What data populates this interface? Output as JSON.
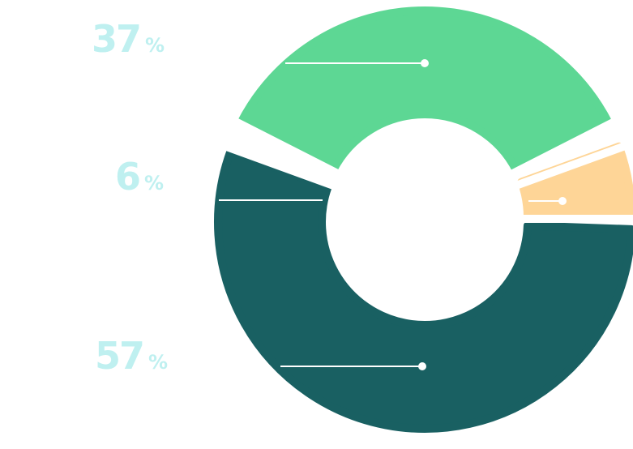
{
  "chart_data": {
    "type": "pie",
    "style": "donut",
    "label_color": "#bff0f0",
    "slices": [
      {
        "key": "teal",
        "value": 57,
        "number": "57",
        "symbol": "%",
        "color": "#196062"
      },
      {
        "key": "green",
        "value": 37,
        "number": "37",
        "symbol": "%",
        "color": "#5dd794"
      },
      {
        "key": "peach",
        "value": 6,
        "number": "6",
        "symbol": "%",
        "color": "#fed597"
      }
    ]
  }
}
